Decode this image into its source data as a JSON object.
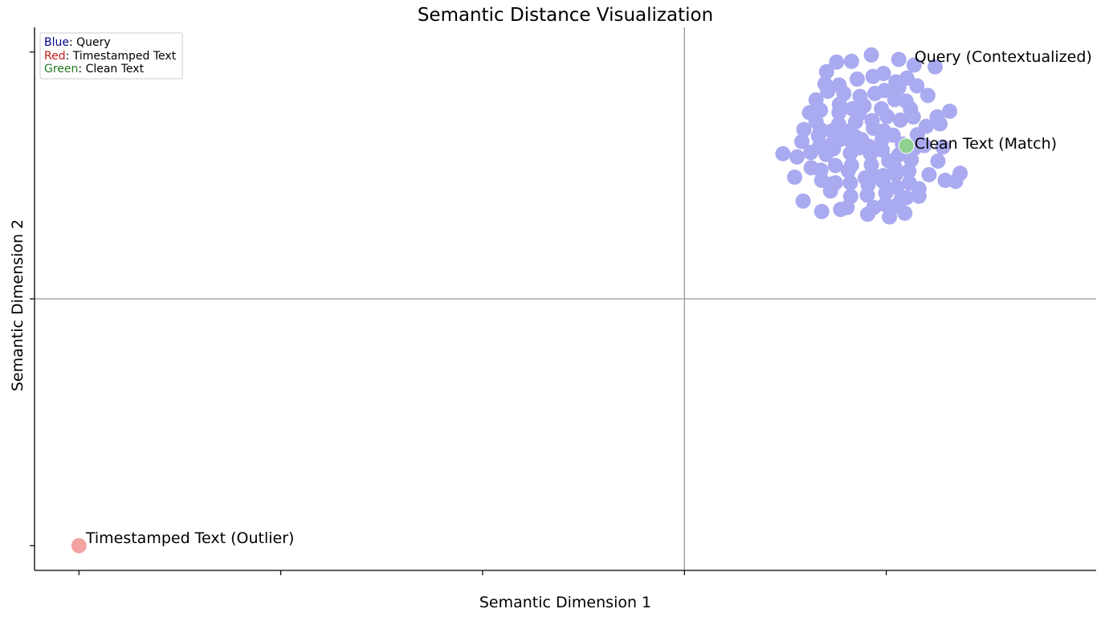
{
  "chart_data": {
    "type": "scatter",
    "title": "Semantic Distance Visualization",
    "xlabel": "Semantic Dimension 1",
    "ylabel": "Semantic Dimension 2",
    "xlim": [
      -0.11,
      2.52
    ],
    "ylim": [
      -0.1,
      2.1
    ],
    "x_ticks": [
      0,
      0.5,
      1,
      1.5,
      2
    ],
    "y_ticks": [
      0,
      1,
      2
    ],
    "tick_labels_shown": false,
    "grid": false,
    "reference_lines": {
      "x": 1.5,
      "y": 1.0
    },
    "legend": {
      "placement": "top-left",
      "entries": [
        {
          "key": "Blue",
          "sep": ": ",
          "label": "Query",
          "color": "#00008b"
        },
        {
          "key": "Red",
          "sep": ": ",
          "label": "Timestamped Text",
          "color": "#c41818"
        },
        {
          "key": "Green",
          "sep": ": ",
          "label": "Clean Text",
          "color": "#1f7a1f"
        }
      ]
    },
    "series": [
      {
        "color": "#aaaaf0",
        "points": [
          [
            1.963,
            1.988
          ],
          [
            2.031,
            1.97
          ],
          [
            1.914,
            1.962
          ],
          [
            1.877,
            1.959
          ],
          [
            1.993,
            1.913
          ],
          [
            2.069,
            1.947
          ],
          [
            2.121,
            1.94
          ],
          [
            1.852,
            1.92
          ],
          [
            1.928,
            1.89
          ],
          [
            1.967,
            1.901
          ],
          [
            2.024,
            1.879
          ],
          [
            2.051,
            1.894
          ],
          [
            1.848,
            1.871
          ],
          [
            1.883,
            1.866
          ],
          [
            2.076,
            1.863
          ],
          [
            2.031,
            1.856
          ],
          [
            1.996,
            1.844
          ],
          [
            1.972,
            1.832
          ],
          [
            1.935,
            1.82
          ],
          [
            1.895,
            1.832
          ],
          [
            1.855,
            1.841
          ],
          [
            2.021,
            1.807
          ],
          [
            2.049,
            1.801
          ],
          [
            2.103,
            1.824
          ],
          [
            2.06,
            1.77
          ],
          [
            1.988,
            1.77
          ],
          [
            1.945,
            1.782
          ],
          [
            1.916,
            1.77
          ],
          [
            1.884,
            1.788
          ],
          [
            1.826,
            1.806
          ],
          [
            1.81,
            1.754
          ],
          [
            1.837,
            1.764
          ],
          [
            1.883,
            1.755
          ],
          [
            1.933,
            1.75
          ],
          [
            1.965,
            1.722
          ],
          [
            2.002,
            1.739
          ],
          [
            2.035,
            1.724
          ],
          [
            2.067,
            1.737
          ],
          [
            2.126,
            1.737
          ],
          [
            2.157,
            1.76
          ],
          [
            2.133,
            1.709
          ],
          [
            2.099,
            1.699
          ],
          [
            2.077,
            1.665
          ],
          [
            1.968,
            1.691
          ],
          [
            1.924,
            1.717
          ],
          [
            1.902,
            1.678
          ],
          [
            1.882,
            1.708
          ],
          [
            1.865,
            1.68
          ],
          [
            1.837,
            1.686
          ],
          [
            1.826,
            1.719
          ],
          [
            1.796,
            1.686
          ],
          [
            1.832,
            1.66
          ],
          [
            1.883,
            1.644
          ],
          [
            1.994,
            1.68
          ],
          [
            2.017,
            1.663
          ],
          [
            1.99,
            1.647
          ],
          [
            2.04,
            1.627
          ],
          [
            2.07,
            1.61
          ],
          [
            2.031,
            1.583
          ],
          [
            1.99,
            1.603
          ],
          [
            1.958,
            1.617
          ],
          [
            1.939,
            1.645
          ],
          [
            1.907,
            1.646
          ],
          [
            1.862,
            1.623
          ],
          [
            1.834,
            1.616
          ],
          [
            1.791,
            1.637
          ],
          [
            1.779,
            1.575
          ],
          [
            1.813,
            1.593
          ],
          [
            1.851,
            1.585
          ],
          [
            1.869,
            1.608
          ],
          [
            1.911,
            1.59
          ],
          [
            1.961,
            1.588
          ],
          [
            2.006,
            1.559
          ],
          [
            2.062,
            1.563
          ],
          [
            2.094,
            1.621
          ],
          [
            2.14,
            1.615
          ],
          [
            2.128,
            1.558
          ],
          [
            2.106,
            1.503
          ],
          [
            2.056,
            1.518
          ],
          [
            2.021,
            1.533
          ],
          [
            1.963,
            1.543
          ],
          [
            1.906,
            1.519
          ],
          [
            1.874,
            1.54
          ],
          [
            1.838,
            1.521
          ],
          [
            1.814,
            1.531
          ],
          [
            1.773,
            1.493
          ],
          [
            1.84,
            1.48
          ],
          [
            1.874,
            1.47
          ],
          [
            1.911,
            1.47
          ],
          [
            1.955,
            1.462
          ],
          [
            1.992,
            1.476
          ],
          [
            2.026,
            1.452
          ],
          [
            2.057,
            1.47
          ],
          [
            2.081,
            1.446
          ],
          [
            2.146,
            1.48
          ],
          [
            2.183,
            1.509
          ],
          [
            2.172,
            1.476
          ],
          [
            2.037,
            1.404
          ],
          [
            1.999,
            1.429
          ],
          [
            1.953,
            1.42
          ],
          [
            1.912,
            1.415
          ],
          [
            1.862,
            1.437
          ],
          [
            1.794,
            1.396
          ],
          [
            1.84,
            1.354
          ],
          [
            1.903,
            1.37
          ],
          [
            1.969,
            1.37
          ],
          [
            1.997,
            1.382
          ],
          [
            2.05,
            1.41
          ],
          [
            2.046,
            1.347
          ],
          [
            2.021,
            1.375
          ],
          [
            1.954,
            1.343
          ],
          [
            1.887,
            1.362
          ],
          [
            1.864,
            1.465
          ],
          [
            1.948,
            1.49
          ],
          [
            1.993,
            1.499
          ],
          [
            2.081,
            1.416
          ],
          [
            2.008,
            1.332
          ],
          [
            1.974,
            1.496
          ],
          [
            1.933,
            1.612
          ],
          [
            2.024,
            1.505
          ],
          [
            1.914,
            1.541
          ],
          [
            1.744,
            1.588
          ],
          [
            1.924,
            1.656
          ]
        ]
      },
      {
        "color": "#f4a3a3",
        "points": [
          [
            0.0,
            0.0
          ]
        ]
      },
      {
        "color": "#90d090",
        "points": [
          [
            2.05,
            1.62
          ]
        ]
      }
    ],
    "annotations": [
      {
        "text": "Query (Contextualized)",
        "x": 2.07,
        "y": 1.96
      },
      {
        "text": "Clean Text (Match)",
        "x": 2.07,
        "y": 1.608
      },
      {
        "text": "Timestamped Text (Outlier)",
        "x": 0.017,
        "y": 0.011
      }
    ]
  }
}
